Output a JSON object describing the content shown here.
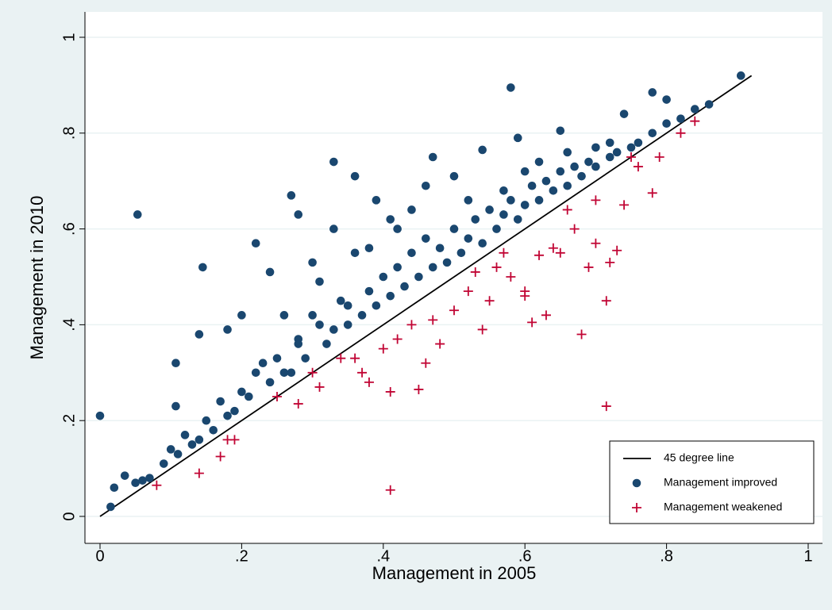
{
  "chart_data": {
    "type": "scatter",
    "xlabel": "Management in 2005",
    "ylabel": "Management in 2010",
    "xlim": [
      0,
      1
    ],
    "ylim": [
      0,
      1
    ],
    "xticks": [
      0,
      {
        "value": 0.2,
        "label": ".2"
      },
      {
        "value": 0.4,
        "label": ".4"
      },
      {
        "value": 0.6,
        "label": ".6"
      },
      {
        "value": 0.8,
        "label": ".8"
      },
      1
    ],
    "yticks": [
      0,
      {
        "value": 0.2,
        "label": ".2"
      },
      {
        "value": 0.4,
        "label": ".4"
      },
      {
        "value": 0.6,
        "label": ".6"
      },
      {
        "value": 0.8,
        "label": ".8"
      },
      1
    ],
    "grid": true,
    "legend": "lower right",
    "series": [
      {
        "name": "45 degree line",
        "type": "line",
        "color": "#000000",
        "x": [
          0,
          0.92
        ],
        "values": [
          0,
          0.92
        ]
      },
      {
        "name": "Management improved",
        "type": "scatter",
        "marker": "circle",
        "color": "#1a476f",
        "x": [
          0,
          0.053,
          0.145,
          0.14,
          0.107,
          0.107,
          0.18,
          0.2,
          0.22,
          0.27,
          0.28,
          0.33,
          0.36,
          0.39,
          0.58,
          0.905,
          0.78,
          0.74,
          0.8,
          0.65,
          0.59,
          0.47,
          0.54,
          0.5,
          0.46,
          0.33,
          0.24,
          0.3,
          0.31,
          0.34,
          0.23,
          0.26,
          0.36,
          0.38,
          0.42,
          0.41,
          0.44,
          0.52,
          0.57,
          0.6,
          0.62,
          0.7,
          0.72,
          0.66,
          0.02,
          0.035,
          0.05,
          0.07,
          0.09,
          0.1,
          0.12,
          0.13,
          0.15,
          0.16,
          0.17,
          0.19,
          0.2,
          0.21,
          0.22,
          0.24,
          0.25,
          0.27,
          0.28,
          0.29,
          0.3,
          0.32,
          0.33,
          0.35,
          0.35,
          0.37,
          0.38,
          0.39,
          0.4,
          0.41,
          0.42,
          0.43,
          0.44,
          0.45,
          0.46,
          0.47,
          0.48,
          0.49,
          0.5,
          0.51,
          0.52,
          0.53,
          0.54,
          0.55,
          0.56,
          0.57,
          0.58,
          0.59,
          0.6,
          0.61,
          0.62,
          0.63,
          0.64,
          0.65,
          0.66,
          0.67,
          0.68,
          0.69,
          0.7,
          0.72,
          0.73,
          0.75,
          0.76,
          0.78,
          0.8,
          0.82,
          0.84,
          0.86,
          0.28,
          0.31,
          0.26,
          0.18,
          0.14,
          0.11,
          0.06,
          0.015
        ],
        "values": [
          0.21,
          0.63,
          0.52,
          0.38,
          0.32,
          0.23,
          0.39,
          0.42,
          0.57,
          0.67,
          0.63,
          0.74,
          0.71,
          0.66,
          0.895,
          0.92,
          0.885,
          0.84,
          0.87,
          0.805,
          0.79,
          0.75,
          0.765,
          0.71,
          0.69,
          0.6,
          0.51,
          0.53,
          0.49,
          0.45,
          0.32,
          0.42,
          0.55,
          0.56,
          0.6,
          0.62,
          0.64,
          0.66,
          0.68,
          0.72,
          0.74,
          0.77,
          0.78,
          0.76,
          0.06,
          0.085,
          0.07,
          0.08,
          0.11,
          0.14,
          0.17,
          0.15,
          0.2,
          0.18,
          0.24,
          0.22,
          0.26,
          0.25,
          0.3,
          0.28,
          0.33,
          0.3,
          0.37,
          0.33,
          0.42,
          0.36,
          0.39,
          0.4,
          0.44,
          0.42,
          0.47,
          0.44,
          0.5,
          0.46,
          0.52,
          0.48,
          0.55,
          0.5,
          0.58,
          0.52,
          0.56,
          0.53,
          0.6,
          0.55,
          0.58,
          0.62,
          0.57,
          0.64,
          0.6,
          0.63,
          0.66,
          0.62,
          0.65,
          0.69,
          0.66,
          0.7,
          0.68,
          0.72,
          0.69,
          0.73,
          0.71,
          0.74,
          0.73,
          0.75,
          0.76,
          0.77,
          0.78,
          0.8,
          0.82,
          0.83,
          0.85,
          0.86,
          0.36,
          0.4,
          0.3,
          0.21,
          0.16,
          0.13,
          0.075,
          0.02
        ]
      },
      {
        "name": "Management weakened",
        "type": "scatter",
        "marker": "plus",
        "color": "#c10534",
        "x": [
          0.41,
          0.715,
          0.68,
          0.715,
          0.54,
          0.61,
          0.63,
          0.72,
          0.73,
          0.7,
          0.45,
          0.41,
          0.38,
          0.46,
          0.48,
          0.14,
          0.17,
          0.08,
          0.78,
          0.82,
          0.84,
          0.79,
          0.75,
          0.74,
          0.6,
          0.6,
          0.58,
          0.55,
          0.52,
          0.5,
          0.4,
          0.37,
          0.31,
          0.28,
          0.25,
          0.18,
          0.19,
          0.34,
          0.44,
          0.47,
          0.56,
          0.62,
          0.65,
          0.67,
          0.7,
          0.76,
          0.53,
          0.57,
          0.66,
          0.42,
          0.36,
          0.3,
          0.64,
          0.69
        ],
        "values": [
          0.055,
          0.23,
          0.38,
          0.45,
          0.39,
          0.405,
          0.42,
          0.53,
          0.555,
          0.57,
          0.265,
          0.26,
          0.28,
          0.32,
          0.36,
          0.09,
          0.125,
          0.065,
          0.675,
          0.8,
          0.825,
          0.75,
          0.75,
          0.65,
          0.46,
          0.47,
          0.5,
          0.45,
          0.47,
          0.43,
          0.35,
          0.3,
          0.27,
          0.235,
          0.25,
          0.16,
          0.16,
          0.33,
          0.4,
          0.41,
          0.52,
          0.545,
          0.55,
          0.6,
          0.66,
          0.73,
          0.51,
          0.55,
          0.64,
          0.37,
          0.33,
          0.3,
          0.56,
          0.52
        ]
      }
    ]
  }
}
